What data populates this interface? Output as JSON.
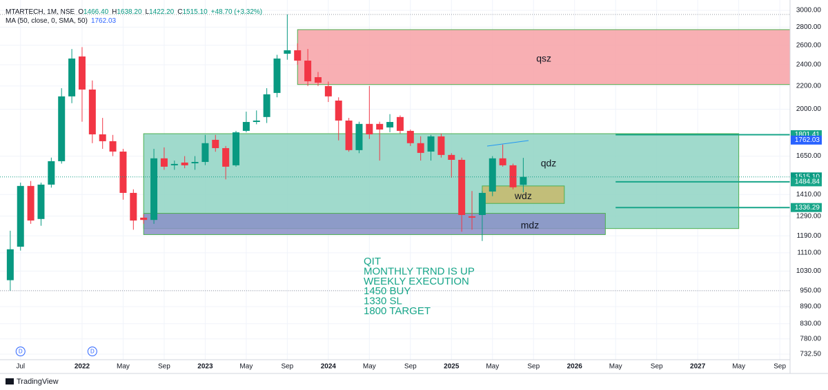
{
  "chart_data": {
    "type": "candlestick",
    "title": "MTARTECH, 1M, NSE",
    "legend_fields": [
      {
        "key": "O",
        "text": "1466.40"
      },
      {
        "key": "H",
        "text": "1638.20"
      },
      {
        "key": "L",
        "text": "1422.20"
      },
      {
        "key": "C",
        "text": "1515.10"
      }
    ],
    "change": "+48.70 (+3.32%)",
    "ma": {
      "label": "MA (50, close, 0, SMA, 50)",
      "value": 1762.03,
      "value_label": "1762.03",
      "color": "#2962ff"
    },
    "x": [
      "2021-06",
      "2021-07",
      "2021-08",
      "2021-09",
      "2021-10",
      "2021-11",
      "2021-12",
      "2022-01",
      "2022-02",
      "2022-03",
      "2022-04",
      "2022-05",
      "2022-06",
      "2022-07",
      "2022-08",
      "2022-09",
      "2022-10",
      "2022-11",
      "2022-12",
      "2023-01",
      "2023-02",
      "2023-03",
      "2023-04",
      "2023-05",
      "2023-06",
      "2023-07",
      "2023-08",
      "2023-09",
      "2023-10",
      "2023-11",
      "2023-12",
      "2024-01",
      "2024-02",
      "2024-03",
      "2024-04",
      "2024-05",
      "2024-06",
      "2024-07",
      "2024-08",
      "2024-09",
      "2024-10",
      "2024-11",
      "2024-12",
      "2025-01",
      "2025-02",
      "2025-03",
      "2025-04",
      "2025-05",
      "2025-06",
      "2025-07",
      "2025-08"
    ],
    "open": [
      992,
      1138,
      1460,
      1275,
      1468,
      1616,
      2108,
      2483,
      2168,
      1804,
      1754,
      1681,
      1419,
      1282,
      1270,
      1635,
      1589,
      1607,
      1602,
      1611,
      1764,
      1705,
      1589,
      1830,
      1898,
      1937,
      2138,
      2511,
      2547,
      2441,
      2281,
      2199,
      2072,
      1909,
      1691,
      1883,
      1883,
      1856,
      1937,
      1830,
      1740,
      1681,
      1789,
      1658,
      1625,
      1289,
      1296,
      1427,
      1635,
      1589,
      1466.4
    ],
    "high": [
      1215,
      1480,
      1490,
      1480,
      1640,
      2180,
      2560,
      2580,
      2250,
      1930,
      1800,
      1700,
      1440,
      1300,
      1700,
      1710,
      1620,
      1650,
      1650,
      1800,
      1800,
      1720,
      1830,
      1980,
      1990,
      2180,
      2500,
      2950,
      2620,
      2560,
      2330,
      2240,
      2100,
      1930,
      1900,
      2200,
      1900,
      1960,
      1950,
      1840,
      1790,
      1800,
      1810,
      1670,
      1640,
      1430,
      1430,
      1650,
      1730,
      1600,
      1638.2
    ],
    "low": [
      950,
      1120,
      1250,
      1240,
      1450,
      1600,
      2050,
      1900,
      1740,
      1700,
      1650,
      1380,
      1220,
      1250,
      1250,
      1560,
      1560,
      1570,
      1560,
      1590,
      1680,
      1500,
      1580,
      1820,
      1880,
      1890,
      2100,
      2450,
      2400,
      2200,
      2200,
      2060,
      1760,
      1680,
      1670,
      1770,
      1620,
      1820,
      1810,
      1720,
      1620,
      1620,
      1640,
      1510,
      1210,
      1220,
      1165,
      1400,
      1580,
      1440,
      1422.2
    ],
    "close": [
      1126,
      1460,
      1267,
      1468,
      1616,
      2108,
      2462,
      2168,
      1804,
      1754,
      1681,
      1419,
      1267,
      1270,
      1635,
      1580,
      1598,
      1589,
      1611,
      1740,
      1705,
      1580,
      1819,
      1898,
      1909,
      2126,
      2462,
      2547,
      2441,
      2243,
      2230,
      2108,
      1909,
      1691,
      1883,
      1804,
      1840,
      1898,
      1830,
      1740,
      1672,
      1789,
      1658,
      1625,
      1296,
      1282,
      1419,
      1635,
      1589,
      1452,
      1515.1
    ],
    "up_color": "#089981",
    "down_color": "#f23645",
    "xlim": [
      "2021-05",
      "2027-10"
    ],
    "xticks": [
      {
        "value": "2021-07",
        "label": "Jul"
      },
      {
        "value": "2022-01",
        "label": "2022"
      },
      {
        "value": "2022-05",
        "label": "May"
      },
      {
        "value": "2022-09",
        "label": "Sep"
      },
      {
        "value": "2023-01",
        "label": "2023"
      },
      {
        "value": "2023-05",
        "label": "May"
      },
      {
        "value": "2023-09",
        "label": "Sep"
      },
      {
        "value": "2024-01",
        "label": "2024"
      },
      {
        "value": "2024-05",
        "label": "May"
      },
      {
        "value": "2024-09",
        "label": "Sep"
      },
      {
        "value": "2025-01",
        "label": "2025"
      },
      {
        "value": "2025-05",
        "label": "May"
      },
      {
        "value": "2025-09",
        "label": "Sep"
      },
      {
        "value": "2026-01",
        "label": "2026"
      },
      {
        "value": "2026-05",
        "label": "May"
      },
      {
        "value": "2026-09",
        "label": "Sep"
      },
      {
        "value": "2027-01",
        "label": "2027"
      },
      {
        "value": "2027-05",
        "label": "May"
      },
      {
        "value": "2027-09",
        "label": "Sep"
      }
    ],
    "ylim": [
      716,
      3130
    ],
    "log_scale": true,
    "grid": true,
    "yticks": [
      {
        "value": 3000,
        "label": "3000.00"
      },
      {
        "value": 2800,
        "label": "2800.00"
      },
      {
        "value": 2600,
        "label": "2600.00"
      },
      {
        "value": 2400,
        "label": "2400.00"
      },
      {
        "value": 2200,
        "label": "2200.00"
      },
      {
        "value": 2000,
        "label": "2000.00"
      },
      {
        "value": 1650,
        "label": "1650.00"
      },
      {
        "value": 1410,
        "label": "1410.00"
      },
      {
        "value": 1290,
        "label": "1290.00"
      },
      {
        "value": 1190,
        "label": "1190.00"
      },
      {
        "value": 1110,
        "label": "1110.00"
      },
      {
        "value": 1030,
        "label": "1030.00"
      },
      {
        "value": 950,
        "label": "950.00"
      },
      {
        "value": 890,
        "label": "890.00"
      },
      {
        "value": 830,
        "label": "830.00"
      },
      {
        "value": 780,
        "label": "780.00"
      },
      {
        "value": 732.5,
        "label": "732.50"
      }
    ],
    "zones": [
      {
        "label": "qsz",
        "from": "2023-10",
        "to": "2027-10",
        "top": 2772,
        "bottom": 2213,
        "color": "#f7a1a6",
        "border": "#4caf50"
      },
      {
        "label": "qdz",
        "from": "2022-07",
        "to": "2027-05",
        "top": 1809,
        "bottom": 1226,
        "color": "#8fd3c3",
        "border": "#4caf50"
      },
      {
        "label": "mdz",
        "from": "2022-07",
        "to": "2026-04",
        "top": 1305,
        "bottom": 1196,
        "color": "#8a8fc7",
        "border": "#4caf50"
      },
      {
        "label": "wdz",
        "from": "2025-04",
        "to": "2025-12",
        "top": 1460,
        "bottom": 1359,
        "color": "#c8b86a",
        "border": "#4caf50"
      }
    ],
    "levels": [
      {
        "value": 1801.41,
        "label": "1801.41"
      },
      {
        "value": 1484.84,
        "label": "1484.84"
      },
      {
        "value": 1336.29,
        "label": "1336.29"
      }
    ],
    "level_from": "2026-05",
    "level_color": "#17a589",
    "last_price": {
      "value": 1515.1,
      "label": "1515.10",
      "color": "#089981"
    },
    "annotation": [
      "QIT",
      "MONTHLY TRND IS UP",
      "WEEKLY EXECUTION",
      "1450 BUY",
      "1330 SL",
      "1800 TARGET"
    ],
    "annotation_color": "#17a589",
    "events": [
      {
        "x": "2021-07",
        "label": "D"
      },
      {
        "x": "2022-02",
        "label": "D"
      }
    ],
    "brand": "TradingView"
  }
}
